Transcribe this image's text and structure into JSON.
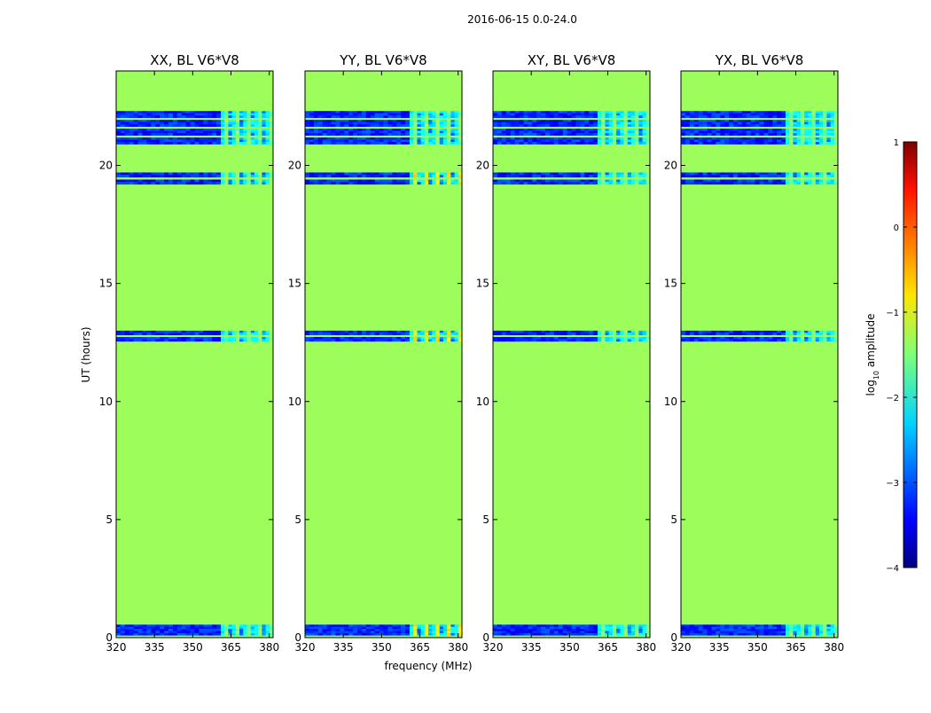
{
  "chart_data": {
    "type": "heatmap",
    "suptitle": "2016-06-15 0.0-24.0",
    "xlabel": "frequency (MHz)",
    "ylabel": "UT (hours)",
    "xlim": [
      320,
      381.5
    ],
    "ylim": [
      0,
      24
    ],
    "xticks": [
      320,
      335,
      350,
      365,
      380
    ],
    "yticks": [
      0,
      5,
      10,
      15,
      20
    ],
    "background_color": "#9dfd5a",
    "colorbar": {
      "label_prefix": "log",
      "label_sub": "10",
      "label_suffix": " amplitude",
      "range": [
        -4,
        1
      ],
      "ticks": [
        "−4",
        "−3",
        "−2",
        "−1",
        "0",
        "1"
      ],
      "colormap": "jet"
    },
    "panels": [
      {
        "title": "XX, BL V6*V8"
      },
      {
        "title": "YY, BL V6*V8"
      },
      {
        "title": "XY, BL V6*V8"
      },
      {
        "title": "YX, BL V6*V8"
      }
    ],
    "observation_bands": [
      {
        "ut_start": 0.1,
        "ut_end": 0.55
      },
      {
        "ut_start": 12.55,
        "ut_end": 13.0
      },
      {
        "ut_start": 19.2,
        "ut_end": 19.7
      },
      {
        "ut_start": 20.9,
        "ut_end": 22.3
      }
    ],
    "rfi_band_mhz": [
      361,
      381.5
    ]
  }
}
